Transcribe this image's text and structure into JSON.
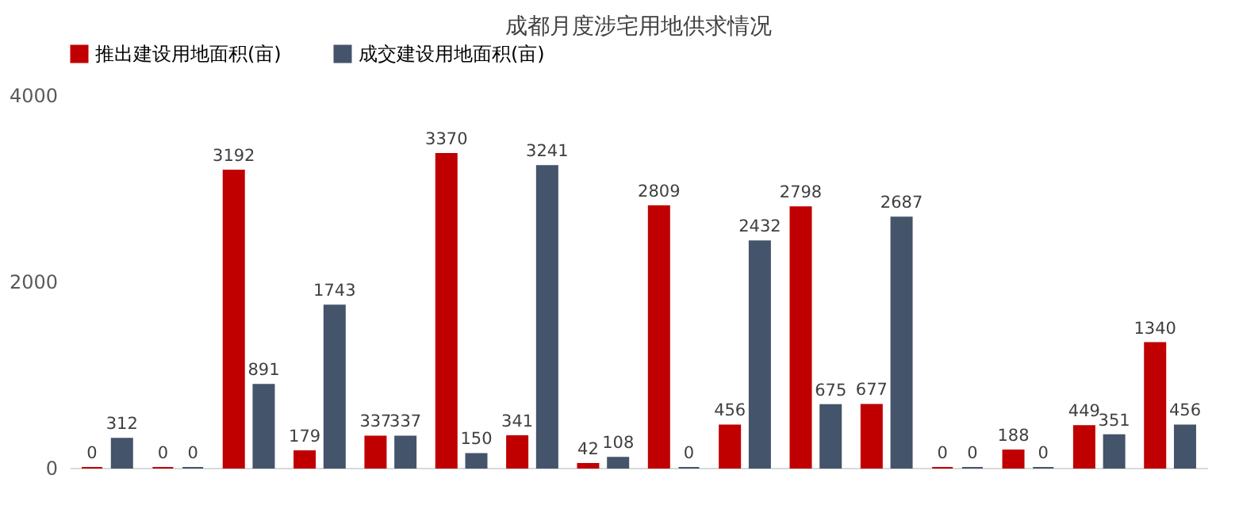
{
  "chart_data": {
    "type": "bar",
    "title": "成都月度涉宅用地供求情况",
    "categories": [
      null,
      null,
      null,
      null,
      null,
      null,
      null,
      null,
      null,
      null,
      null,
      null,
      null,
      null,
      null,
      null
    ],
    "series": [
      {
        "name": "推出建设用地面积(亩)",
        "color": "#c00000",
        "values": [
          0,
          0,
          3192,
          179,
          337,
          3370,
          341,
          42,
          2809,
          456,
          2798,
          677,
          0,
          188,
          449,
          1340
        ]
      },
      {
        "name": "成交建设用地面积(亩)",
        "color": "#44546a",
        "values": [
          312,
          0,
          891,
          1743,
          337,
          150,
          3241,
          108,
          0,
          2432,
          675,
          2687,
          0,
          0,
          351,
          456
        ]
      }
    ],
    "ylim": [
      0,
      4000
    ],
    "yticks": [
      0,
      2000,
      4000
    ],
    "grid": false,
    "legend": "top",
    "data_labels": true,
    "tick_labels": "y"
  }
}
